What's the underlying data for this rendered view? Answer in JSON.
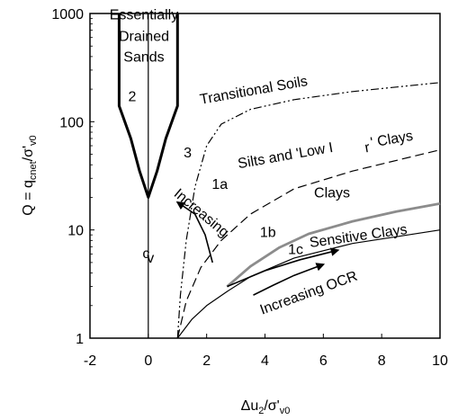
{
  "chart_data": {
    "type": "line",
    "title": "",
    "xlabel_parts": {
      "pre": "Δu",
      "sub1": "2",
      "mid": "/σ'",
      "sub2": "v0"
    },
    "ylabel_parts": {
      "pre": "Q = q",
      "sub1": "cnet",
      "mid": "/σ'",
      "sub2": "v0"
    },
    "x_ticks": [
      -2,
      0,
      2,
      4,
      6,
      8,
      10
    ],
    "x_tick_labels": [
      "-2",
      "0",
      "2",
      "4",
      "6",
      "8",
      "10"
    ],
    "y_ticks": [
      1,
      10,
      100,
      1000
    ],
    "y_tick_labels": [
      "1",
      "10",
      "100",
      "1000"
    ],
    "xlim": [
      -2,
      10
    ],
    "ylim": [
      1,
      1000
    ],
    "yscale": "log",
    "grid": false,
    "series": [
      {
        "style": "thick-solid",
        "color": "#000000",
        "x": [
          -1.0,
          -1.0,
          -0.6,
          -0.3,
          0.0,
          0.3,
          0.6,
          1.0,
          1.0
        ],
        "y": [
          1000,
          140,
          70,
          35,
          20,
          35,
          70,
          140,
          1000
        ]
      },
      {
        "style": "thin-solid",
        "color": "#000000",
        "x": [
          0,
          0
        ],
        "y": [
          1,
          1000
        ]
      },
      {
        "style": "dash-dot-dot",
        "color": "#000000",
        "x": [
          1.0,
          1.1,
          1.3,
          1.6,
          2.0,
          2.5,
          3.5,
          5.0,
          7.0,
          10.0
        ],
        "y": [
          1.0,
          2.5,
          8,
          25,
          60,
          95,
          130,
          160,
          190,
          230
        ]
      },
      {
        "style": "dashed",
        "color": "#000000",
        "x": [
          1.0,
          1.3,
          1.8,
          2.5,
          3.5,
          5.0,
          7.0,
          10.0
        ],
        "y": [
          1.0,
          2.2,
          4.5,
          8,
          14,
          24,
          35,
          55
        ]
      },
      {
        "style": "thin-solid",
        "color": "#000000",
        "x": [
          1.0,
          1.5,
          2.0,
          2.7,
          3.5,
          5.0,
          7.0,
          10.0
        ],
        "y": [
          1.0,
          1.5,
          2.0,
          2.7,
          3.7,
          5.5,
          7.5,
          10.0
        ]
      },
      {
        "style": "gray-thick",
        "color": "#8c8c8c",
        "x": [
          2.7,
          3.5,
          4.5,
          5.5,
          7.0,
          8.5,
          10.0
        ],
        "y": [
          3.0,
          4.6,
          6.9,
          9.2,
          12,
          14.8,
          17.5
        ]
      }
    ],
    "arrows": [
      {
        "x": [
          2.2,
          1.95,
          1.6,
          1.0
        ],
        "y": [
          5.0,
          9.0,
          14.0,
          18.0
        ]
      },
      {
        "x": [
          2.7,
          4.0,
          5.2,
          6.5
        ],
        "y": [
          3.0,
          4.2,
          5.3,
          6.5
        ]
      },
      {
        "x": [
          3.6,
          4.3,
          5.0,
          6.0
        ],
        "y": [
          2.5,
          3.1,
          3.8,
          4.8
        ]
      }
    ],
    "annotations": [
      {
        "text": "Essentially",
        "x": -0.15,
        "y": 880,
        "anchor": "middle"
      },
      {
        "text": "Drained",
        "x": -0.15,
        "y": 560,
        "anchor": "middle"
      },
      {
        "text": "Sands",
        "x": -0.15,
        "y": 360,
        "anchor": "middle"
      },
      {
        "text": "2",
        "x": -0.55,
        "y": 155,
        "anchor": "middle"
      },
      {
        "text": "3",
        "x": 1.35,
        "y": 47,
        "anchor": "middle"
      },
      {
        "text": "Transitional Soils",
        "x": 1.8,
        "y": 145,
        "anchor": "start",
        "rotate": -10
      },
      {
        "text": "1a",
        "x": 2.45,
        "y": 24,
        "anchor": "middle"
      },
      {
        "text": "Silts and 'Low I",
        "x": 3.1,
        "y": 37,
        "anchor": "start",
        "rotate": -10
      },
      {
        "text": "r",
        "x": 7.45,
        "y": 52,
        "anchor": "start",
        "rotate": -10,
        "role": "subscript"
      },
      {
        "text": "' Clays",
        "x": 7.65,
        "y": 58,
        "anchor": "start",
        "rotate": -10
      },
      {
        "text": "Clays",
        "x": 6.3,
        "y": 20,
        "anchor": "middle"
      },
      {
        "text": "1b",
        "x": 4.1,
        "y": 8.6,
        "anchor": "middle"
      },
      {
        "text": "Sensitive Clays",
        "x": 5.55,
        "y": 6.9,
        "anchor": "start",
        "rotate": -8
      },
      {
        "text": "1c",
        "x": 5.05,
        "y": 6.0,
        "anchor": "middle"
      },
      {
        "text": "Increasing OCR",
        "x": 3.9,
        "y": 1.65,
        "anchor": "start",
        "rotate": -20
      },
      {
        "text": "Increasing",
        "x": 0.85,
        "y": 21,
        "anchor": "start",
        "rotate": 40
      },
      {
        "text": "c",
        "x": -0.2,
        "y": 5.5,
        "anchor": "start"
      },
      {
        "text": "v",
        "x": -0.05,
        "y": 5.0,
        "anchor": "start",
        "role": "subscript"
      }
    ]
  }
}
